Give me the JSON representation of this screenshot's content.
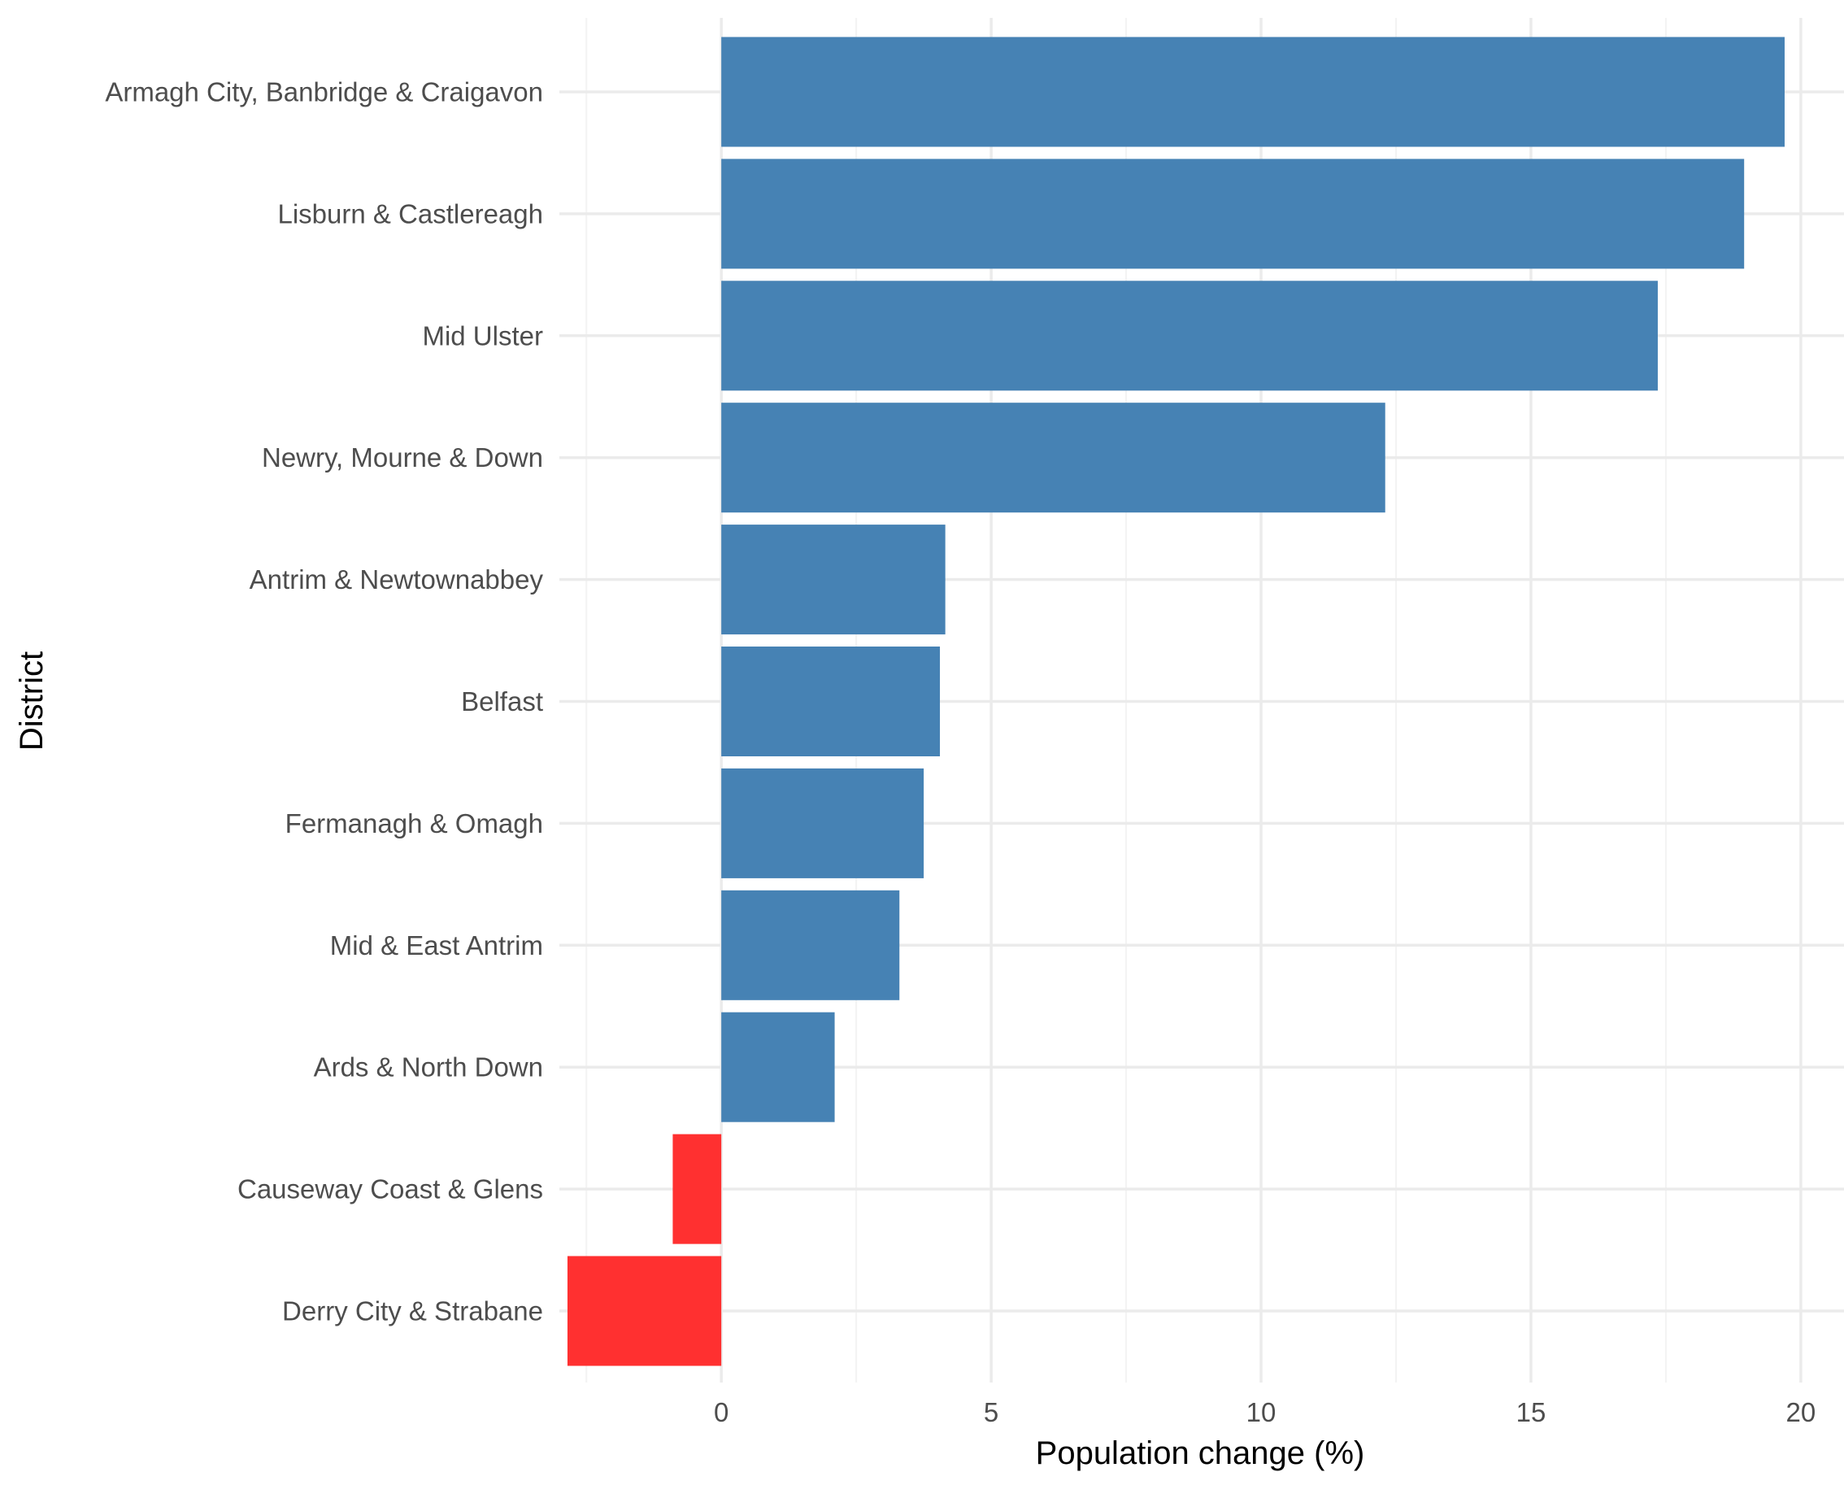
{
  "chart_data": {
    "type": "bar",
    "orientation": "horizontal",
    "xlabel": "Population change (%)",
    "ylabel": "District",
    "xlim": [
      -3.0,
      20.8
    ],
    "x_ticks": [
      0,
      5,
      10,
      15,
      20
    ],
    "x_tick_labels": [
      "0",
      "5",
      "10",
      "15",
      "20"
    ],
    "grid": true,
    "legend": "none",
    "categories": [
      "Armagh City, Banbridge & Craigavon",
      "Lisburn & Castlereagh",
      "Mid Ulster",
      "Newry, Mourne & Down",
      "Antrim & Newtownabbey",
      "Belfast",
      "Fermanagh & Omagh",
      "Mid & East Antrim",
      "Ards & North Down",
      "Causeway Coast & Glens",
      "Derry City & Strabane"
    ],
    "values": [
      19.7,
      18.95,
      17.35,
      12.3,
      4.15,
      4.05,
      3.75,
      3.3,
      2.1,
      -0.9,
      -2.85
    ],
    "colors": {
      "positive": "#4682B4",
      "negative": "#FF3030",
      "grid_major": "#EBEBEB",
      "grid_minor": "#F3F3F3",
      "tick_text": "#4D4D4D",
      "axis_title": "#000000"
    }
  }
}
